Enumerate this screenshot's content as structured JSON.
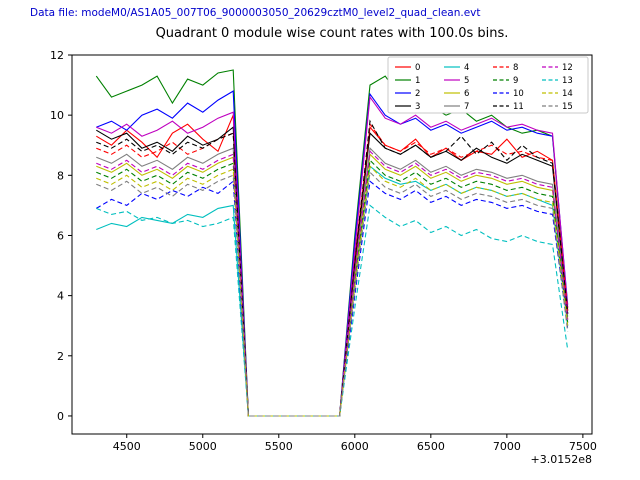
{
  "header": {
    "data_file_label": "Data file: modeM0/AS1A05_007T06_9000003050_20629cztM0_level2_quad_clean.evt"
  },
  "chart_data": {
    "type": "line",
    "title": "Quadrant 0 module wise count rates with 100.0s bins.",
    "xlabel": "",
    "ylabel": "",
    "x_offset_label": "+3.0152e8",
    "xlim": [
      4140,
      7560
    ],
    "ylim": [
      -0.6,
      12.0
    ],
    "xticks": [
      4500,
      5000,
      5500,
      6000,
      6500,
      7000,
      7500
    ],
    "yticks": [
      0,
      2,
      4,
      6,
      8,
      10,
      12
    ],
    "grid": false,
    "legend_position": "upper right",
    "legend_columns": 4,
    "x": [
      4300,
      4400,
      4500,
      4600,
      4700,
      4800,
      4900,
      5000,
      5100,
      5200,
      5300,
      5400,
      5500,
      5600,
      5700,
      5800,
      5900,
      6000,
      6100,
      6200,
      6300,
      6400,
      6500,
      6600,
      6700,
      6800,
      6900,
      7000,
      7100,
      7200,
      7300,
      7400
    ],
    "series": [
      {
        "name": "0",
        "color": "#ff0000",
        "dash": "solid",
        "values": [
          9.3,
          9.0,
          9.5,
          9.1,
          8.6,
          9.4,
          9.7,
          9.2,
          8.8,
          10.0,
          0,
          0,
          0,
          0,
          0,
          0,
          0,
          5.2,
          9.6,
          9.0,
          8.8,
          9.2,
          8.6,
          8.9,
          8.5,
          8.8,
          8.7,
          9.2,
          8.6,
          8.8,
          8.5,
          3.6
        ]
      },
      {
        "name": "1",
        "color": "#008000",
        "dash": "solid",
        "values": [
          11.3,
          10.6,
          10.8,
          11.0,
          11.3,
          10.4,
          11.2,
          11.0,
          11.4,
          11.5,
          0,
          0,
          0,
          0,
          0,
          0,
          0,
          6.0,
          11.0,
          11.3,
          10.6,
          10.9,
          10.3,
          10.0,
          10.2,
          9.8,
          10.0,
          9.6,
          9.4,
          9.5,
          9.3,
          3.5
        ]
      },
      {
        "name": "2",
        "color": "#0000ff",
        "dash": "solid",
        "values": [
          9.6,
          9.8,
          9.5,
          10.0,
          10.2,
          9.9,
          10.4,
          10.1,
          10.5,
          10.8,
          0,
          0,
          0,
          0,
          0,
          0,
          0,
          5.8,
          10.7,
          10.0,
          9.7,
          9.9,
          9.5,
          9.7,
          9.4,
          9.6,
          9.8,
          9.5,
          9.6,
          9.4,
          9.3,
          3.7
        ]
      },
      {
        "name": "3",
        "color": "#000000",
        "dash": "solid",
        "values": [
          9.5,
          9.2,
          9.4,
          8.9,
          9.1,
          8.8,
          9.3,
          9.0,
          9.2,
          9.6,
          0,
          0,
          0,
          0,
          0,
          0,
          0,
          5.0,
          9.4,
          8.9,
          8.7,
          9.0,
          8.6,
          8.8,
          8.5,
          8.9,
          8.6,
          8.4,
          8.7,
          8.5,
          8.3,
          3.4
        ]
      },
      {
        "name": "4",
        "color": "#00bfbf",
        "dash": "solid",
        "values": [
          6.2,
          6.4,
          6.3,
          6.6,
          6.5,
          6.4,
          6.7,
          6.6,
          6.9,
          7.0,
          0,
          0,
          0,
          0,
          0,
          0,
          0,
          4.4,
          8.3,
          7.9,
          7.7,
          7.8,
          7.5,
          7.7,
          7.4,
          7.6,
          7.5,
          7.3,
          7.4,
          7.2,
          7.0,
          3.0
        ]
      },
      {
        "name": "5",
        "color": "#bf00bf",
        "dash": "solid",
        "values": [
          9.6,
          9.4,
          9.7,
          9.3,
          9.5,
          9.8,
          9.4,
          9.6,
          9.9,
          10.1,
          0,
          0,
          0,
          0,
          0,
          0,
          0,
          5.5,
          10.6,
          9.9,
          9.7,
          10.0,
          9.6,
          9.8,
          9.5,
          9.7,
          9.9,
          9.6,
          9.7,
          9.5,
          9.4,
          3.6
        ]
      },
      {
        "name": "6",
        "color": "#bfbf00",
        "dash": "solid",
        "values": [
          8.3,
          8.1,
          8.4,
          8.0,
          8.2,
          7.9,
          8.3,
          8.1,
          8.4,
          8.6,
          0,
          0,
          0,
          0,
          0,
          0,
          0,
          4.6,
          8.7,
          8.2,
          8.0,
          8.3,
          7.9,
          8.1,
          7.8,
          8.0,
          7.9,
          7.7,
          7.8,
          7.6,
          7.5,
          3.2
        ]
      },
      {
        "name": "7",
        "color": "#7f7f7f",
        "dash": "solid",
        "values": [
          8.6,
          8.4,
          8.7,
          8.3,
          8.5,
          8.2,
          8.6,
          8.4,
          8.7,
          8.9,
          0,
          0,
          0,
          0,
          0,
          0,
          0,
          4.8,
          8.9,
          8.4,
          8.2,
          8.5,
          8.1,
          8.3,
          8.0,
          8.2,
          8.1,
          7.9,
          8.0,
          7.8,
          7.7,
          3.3
        ]
      },
      {
        "name": "8",
        "color": "#ff0000",
        "dash": "dashed",
        "values": [
          8.9,
          8.7,
          9.0,
          8.6,
          8.8,
          9.1,
          8.7,
          8.9,
          9.2,
          9.4,
          0,
          0,
          0,
          0,
          0,
          0,
          0,
          5.0,
          9.7,
          9.0,
          8.8,
          9.1,
          8.7,
          8.9,
          8.6,
          8.8,
          9.0,
          8.7,
          8.8,
          8.6,
          8.5,
          3.5
        ]
      },
      {
        "name": "9",
        "color": "#008000",
        "dash": "dashed",
        "values": [
          8.1,
          7.9,
          8.2,
          7.8,
          8.0,
          7.7,
          8.1,
          7.9,
          8.2,
          8.4,
          0,
          0,
          0,
          0,
          0,
          0,
          0,
          4.4,
          8.5,
          8.0,
          7.8,
          8.1,
          7.7,
          7.9,
          7.6,
          7.8,
          7.7,
          7.5,
          7.6,
          7.4,
          7.3,
          3.1
        ]
      },
      {
        "name": "10",
        "color": "#0000ff",
        "dash": "dashed",
        "values": [
          6.9,
          7.2,
          7.0,
          7.4,
          7.2,
          7.5,
          7.3,
          7.6,
          7.4,
          7.8,
          0,
          0,
          0,
          0,
          0,
          0,
          0,
          4.0,
          7.8,
          7.4,
          7.2,
          7.5,
          7.1,
          7.3,
          7.0,
          7.2,
          7.1,
          6.9,
          7.0,
          6.8,
          6.7,
          2.9
        ]
      },
      {
        "name": "11",
        "color": "#000000",
        "dash": "dashed",
        "values": [
          9.1,
          8.9,
          9.2,
          8.8,
          9.0,
          8.7,
          9.1,
          8.9,
          9.2,
          9.4,
          0,
          0,
          0,
          0,
          0,
          0,
          0,
          5.1,
          9.8,
          8.9,
          8.7,
          9.0,
          8.6,
          8.8,
          9.3,
          8.7,
          9.1,
          8.5,
          9.0,
          8.6,
          8.4,
          3.4
        ]
      },
      {
        "name": "12",
        "color": "#bf00bf",
        "dash": "dashed",
        "values": [
          8.4,
          8.2,
          8.5,
          8.1,
          8.3,
          8.0,
          8.4,
          8.2,
          8.5,
          8.7,
          0,
          0,
          0,
          0,
          0,
          0,
          0,
          4.7,
          8.8,
          8.3,
          8.1,
          8.4,
          8.0,
          8.2,
          7.9,
          8.1,
          8.0,
          7.8,
          7.9,
          7.7,
          7.6,
          3.2
        ]
      },
      {
        "name": "13",
        "color": "#00bfbf",
        "dash": "dashed",
        "values": [
          6.9,
          6.7,
          6.8,
          6.5,
          6.6,
          6.4,
          6.5,
          6.3,
          6.4,
          6.6,
          0,
          0,
          0,
          0,
          0,
          0,
          0,
          3.6,
          7.0,
          6.6,
          6.3,
          6.5,
          6.1,
          6.3,
          6.0,
          6.2,
          5.9,
          5.8,
          6.0,
          5.8,
          5.7,
          2.2
        ]
      },
      {
        "name": "14",
        "color": "#bfbf00",
        "dash": "dashed",
        "values": [
          7.9,
          7.7,
          8.0,
          7.6,
          7.8,
          7.5,
          7.9,
          7.7,
          8.0,
          8.2,
          0,
          0,
          0,
          0,
          0,
          0,
          0,
          4.3,
          8.3,
          7.8,
          7.6,
          7.9,
          7.5,
          7.7,
          7.4,
          7.6,
          7.5,
          7.3,
          7.4,
          7.2,
          7.1,
          3.0
        ]
      },
      {
        "name": "15",
        "color": "#7f7f7f",
        "dash": "dashed",
        "values": [
          7.7,
          7.5,
          7.8,
          7.4,
          7.6,
          7.3,
          7.7,
          7.5,
          7.8,
          8.0,
          0,
          0,
          0,
          0,
          0,
          0,
          0,
          4.2,
          8.1,
          7.6,
          7.4,
          7.7,
          7.3,
          7.5,
          7.2,
          7.4,
          7.3,
          7.1,
          7.2,
          7.0,
          6.9,
          2.8
        ]
      }
    ]
  }
}
